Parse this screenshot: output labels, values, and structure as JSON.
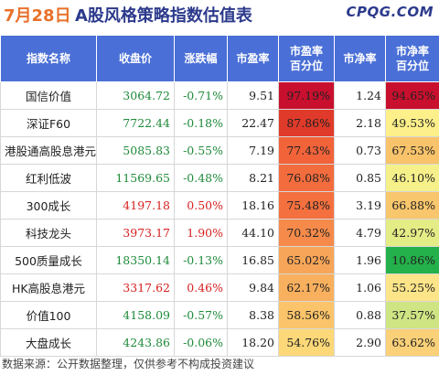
{
  "title": {
    "date": "7月28日",
    "main": "A股风格策略指数估值表",
    "brand": "CPQG.COM"
  },
  "table": {
    "headers": [
      "指数名称",
      "收盘价",
      "涨跌幅",
      "市盈率",
      "市盈率\n百分位",
      "市净率",
      "市净率\n百分位"
    ],
    "rows": [
      {
        "name": "国信价值",
        "close": "3064.72",
        "change": "-0.71%",
        "pe": "9.51",
        "pe_pct": "97.19%",
        "pb": "1.24",
        "pb_pct": "94.65%",
        "pe_color": "#c8102e",
        "pb_color": "#c8102e",
        "up": false
      },
      {
        "name": "深证F60",
        "close": "7722.44",
        "change": "-0.18%",
        "pe": "22.47",
        "pe_pct": "87.86%",
        "pb": "2.18",
        "pb_pct": "49.53%",
        "pe_color": "#e03a2a",
        "pb_color": "#fdf08a",
        "up": false
      },
      {
        "name": "港股通高股息港元",
        "close": "5085.83",
        "change": "-0.55%",
        "pe": "7.19",
        "pe_pct": "77.43%",
        "pb": "0.73",
        "pb_pct": "67.53%",
        "pe_color": "#f2633a",
        "pb_color": "#f8c36a",
        "up": false
      },
      {
        "name": "红利低波",
        "close": "11569.65",
        "change": "-0.48%",
        "pe": "8.21",
        "pe_pct": "76.08%",
        "pb": "0.85",
        "pb_pct": "46.10%",
        "pe_color": "#f36c3d",
        "pb_color": "#f5f08a",
        "up": false
      },
      {
        "name": "300成长",
        "close": "4197.18",
        "change": "0.50%",
        "pe": "18.16",
        "pe_pct": "75.48%",
        "pb": "3.19",
        "pb_pct": "66.88%",
        "pe_color": "#f4703e",
        "pb_color": "#f8c66c",
        "up": true
      },
      {
        "name": "科技龙头",
        "close": "3973.17",
        "change": "1.90%",
        "pe": "44.10",
        "pe_pct": "70.32%",
        "pb": "4.79",
        "pb_pct": "42.97%",
        "pe_color": "#f58a4a",
        "pb_color": "#e4ec86",
        "up": true
      },
      {
        "name": "500质量成长",
        "close": "18350.14",
        "change": "-0.13%",
        "pe": "16.85",
        "pe_pct": "65.02%",
        "pb": "1.96",
        "pb_pct": "10.86%",
        "pe_color": "#f7a558",
        "pb_color": "#24b04a",
        "up": false
      },
      {
        "name": "HK高股息港元",
        "close": "3317.62",
        "change": "0.46%",
        "pe": "9.84",
        "pe_pct": "62.17%",
        "pb": "1.06",
        "pb_pct": "55.25%",
        "pe_color": "#f8b05e",
        "pb_color": "#fce488",
        "up": true
      },
      {
        "name": "价值100",
        "close": "4158.09",
        "change": "-0.57%",
        "pe": "8.38",
        "pe_pct": "58.56%",
        "pb": "0.88",
        "pb_pct": "37.57%",
        "pe_color": "#fbc46a",
        "pb_color": "#cfe483",
        "up": false
      },
      {
        "name": "大盘成长",
        "close": "4243.86",
        "change": "-0.06%",
        "pe": "18.20",
        "pe_pct": "54.76%",
        "pb": "2.90",
        "pb_pct": "63.62%",
        "pe_color": "#fcd878",
        "pb_color": "#fad078",
        "up": false
      }
    ]
  },
  "footer": {
    "text": "数据来源：公开数据整理，仅供参考不构成投资建议"
  }
}
